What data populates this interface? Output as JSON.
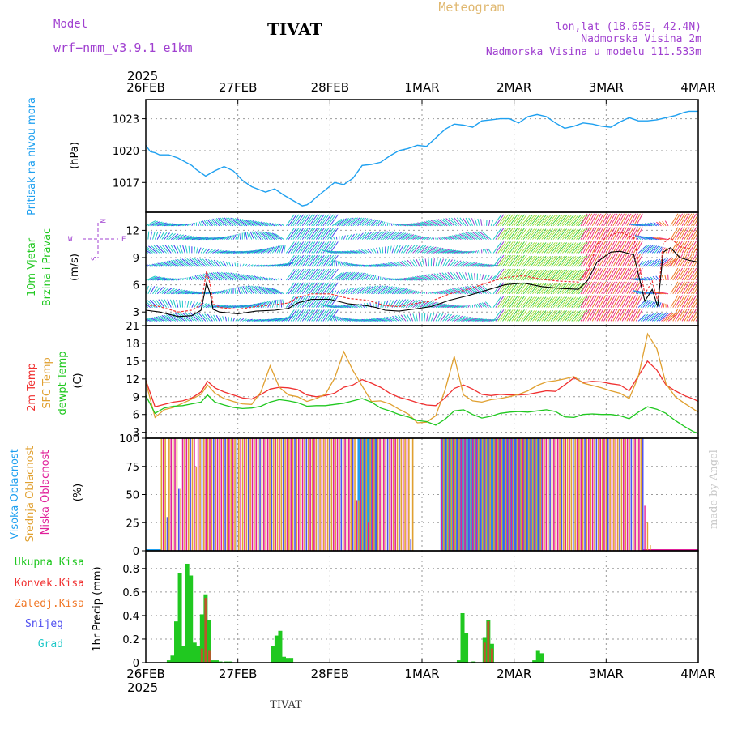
{
  "header": {
    "model_label": "Model",
    "model_name": "wrf−nmm_v3.9.1  e1km",
    "station": "TIVAT",
    "meteogram": "Meteogram",
    "lonlat": "lon,lat (18.65E, 42.4N)",
    "elevation": "Nadmorska Visina 2m",
    "elevation_model": "Nadmorska Visina u modelu 111.533m",
    "footer_station": "TIVAT",
    "credit": "made by Angel",
    "year": "2025"
  },
  "colors": {
    "pressure": "#1ea0f0",
    "temp2m": "#f03030",
    "sfc": "#e0a030",
    "dew": "#20c820",
    "high": "#1ea0f0",
    "mid": "#e0a030",
    "low": "#e0209a",
    "ukupna": "#20c820",
    "konvek": "#f03030",
    "zaledj": "#f07828",
    "snijeg": "#5050f0",
    "grad": "#20c8c8",
    "purple": "#a040d0"
  },
  "time_axis": {
    "labels": [
      "26FEB",
      "27FEB",
      "28FEB",
      "1MAR",
      "2MAR",
      "3MAR",
      "4MAR"
    ]
  },
  "chart_data": [
    {
      "type": "line",
      "panel": "pressure",
      "ylabel": "Pritisak na nivou mora",
      "unit": "(hPa)",
      "yticks": [
        1017,
        1020,
        1023
      ],
      "ylim": [
        1014.2,
        1024.8
      ],
      "xlim_days": [
        0,
        6
      ],
      "x_days": [
        0,
        0.05,
        0.1,
        0.15,
        0.25,
        0.35,
        0.5,
        0.55,
        0.65,
        0.75,
        0.85,
        0.95,
        1.05,
        1.15,
        1.3,
        1.4,
        1.5,
        1.6,
        1.7,
        1.75,
        1.8,
        1.85,
        1.95,
        2.05,
        2.15,
        2.25,
        2.35,
        2.45,
        2.55,
        2.65,
        2.75,
        2.85,
        2.95,
        3.05,
        3.15,
        3.25,
        3.35,
        3.45,
        3.55,
        3.65,
        3.75,
        3.85,
        3.95,
        4.05,
        4.15,
        4.25,
        4.35,
        4.45,
        4.55,
        4.65,
        4.75,
        4.85,
        4.95,
        5.05,
        5.15,
        5.25,
        5.35,
        5.45,
        5.55,
        5.65,
        5.75,
        5.85,
        5.9,
        6.0
      ],
      "series": [
        {
          "name": "Pritisak na nivou mora",
          "values": [
            1020.5,
            1019.9,
            1019.8,
            1019.6,
            1019.6,
            1019.3,
            1018.6,
            1018.2,
            1017.6,
            1018.1,
            1018.5,
            1018.1,
            1017.2,
            1016.6,
            1016.1,
            1016.4,
            1015.8,
            1015.3,
            1014.8,
            1014.9,
            1015.2,
            1015.6,
            1016.3,
            1017,
            1016.8,
            1017.4,
            1018.6,
            1018.7,
            1018.9,
            1019.5,
            1020,
            1020.2,
            1020.5,
            1020.4,
            1021.2,
            1022,
            1022.5,
            1022.4,
            1022.2,
            1022.8,
            1022.9,
            1023,
            1023,
            1022.6,
            1023.2,
            1023.4,
            1023.2,
            1022.6,
            1022.1,
            1022.3,
            1022.6,
            1022.5,
            1022.3,
            1022.2,
            1022.7,
            1023.1,
            1022.8,
            1022.8,
            1022.9,
            1023.1,
            1023.3,
            1023.6,
            1023.7,
            1023.7
          ]
        }
      ]
    },
    {
      "type": "line",
      "panel": "wind",
      "ylabel": "10m Vjetar Brzina i Pravac",
      "unit": "(m/s)",
      "yticks": [
        3,
        6,
        9,
        12
      ],
      "ylim": [
        1.5,
        14
      ],
      "xlim_days": [
        0,
        6
      ],
      "compass": {
        "n": "N",
        "e": "E",
        "w": "W",
        "s": "S"
      },
      "speed_x_days": [
        0,
        0.15,
        0.35,
        0.5,
        0.6,
        0.66,
        0.7,
        0.73,
        0.8,
        1.0,
        1.2,
        1.4,
        1.55,
        1.65,
        1.8,
        2.0,
        2.2,
        2.4,
        2.5,
        2.6,
        2.75,
        2.9,
        3.1,
        3.3,
        3.5,
        3.7,
        3.9,
        4.1,
        4.3,
        4.5,
        4.7,
        4.8,
        4.9,
        5.05,
        5.15,
        5.3,
        5.42,
        5.5,
        5.56,
        5.62,
        5.7,
        5.8,
        5.9,
        6.0
      ],
      "series": [
        {
          "name": "speed",
          "values": [
            3.2,
            3.0,
            2.5,
            2.6,
            3.2,
            6.2,
            5.0,
            3.3,
            3.0,
            2.8,
            3.1,
            3.2,
            3.4,
            4.0,
            4.4,
            4.4,
            3.9,
            3.7,
            3.5,
            3.2,
            3.1,
            3.3,
            3.6,
            4.3,
            4.8,
            5.4,
            6.0,
            6.2,
            5.8,
            5.6,
            5.5,
            6.5,
            8.5,
            9.6,
            9.7,
            9.3,
            4.2,
            5.5,
            3.6,
            9.6,
            10.1,
            9.0,
            8.7,
            8.5
          ]
        },
        {
          "name": "gust",
          "values": [
            3.8,
            3.6,
            3.0,
            3.2,
            3.8,
            7.5,
            6.0,
            3.9,
            3.5,
            3.3,
            3.6,
            3.8,
            4.0,
            4.6,
            5.0,
            5.0,
            4.5,
            4.3,
            4.0,
            3.7,
            3.6,
            3.9,
            4.2,
            5.0,
            5.5,
            6.2,
            6.8,
            7.0,
            6.6,
            6.4,
            6.3,
            7.5,
            10.5,
            11.5,
            11.8,
            11.2,
            5.0,
            6.4,
            4.2,
            10.6,
            11.2,
            10.2,
            10.0,
            9.8
          ]
        }
      ]
    },
    {
      "type": "line",
      "panel": "temperature",
      "ylabel": "2m Temp / SFC Temp / dewpt Temp",
      "unit": "(C)",
      "yticks": [
        3,
        6,
        9,
        12,
        15,
        18,
        21
      ],
      "ylim": [
        2,
        21
      ],
      "xlim_days": [
        0,
        6
      ],
      "x_days": [
        0,
        0.1,
        0.2,
        0.3,
        0.4,
        0.5,
        0.6,
        0.67,
        0.75,
        0.85,
        0.95,
        1.05,
        1.15,
        1.25,
        1.35,
        1.45,
        1.55,
        1.65,
        1.75,
        1.85,
        1.95,
        2.05,
        2.15,
        2.25,
        2.35,
        2.45,
        2.55,
        2.65,
        2.75,
        2.85,
        2.95,
        3.05,
        3.15,
        3.25,
        3.35,
        3.45,
        3.55,
        3.65,
        3.75,
        3.85,
        3.95,
        4.05,
        4.15,
        4.25,
        4.35,
        4.45,
        4.55,
        4.65,
        4.75,
        4.85,
        4.95,
        5.05,
        5.15,
        5.25,
        5.35,
        5.45,
        5.55,
        5.65,
        5.75,
        5.85,
        5.95,
        6.0
      ],
      "series": [
        {
          "name": "2m Temp",
          "values": [
            11.8,
            7.3,
            7.7,
            8.1,
            8.3,
            8.8,
            9.8,
            11.6,
            10.5,
            9.8,
            9.3,
            8.8,
            8.6,
            9.4,
            10.3,
            10.6,
            10.5,
            10.2,
            9.3,
            9.0,
            9.2,
            9.6,
            10.6,
            11.0,
            11.9,
            11.3,
            10.6,
            9.6,
            8.9,
            8.5,
            8.0,
            7.6,
            7.5,
            8.8,
            10.4,
            11.0,
            10.3,
            9.4,
            9.2,
            9.4,
            9.3,
            9.3,
            9.4,
            9.7,
            10.0,
            9.9,
            11.0,
            12.2,
            11.4,
            11.6,
            11.5,
            11.2,
            11.0,
            10.0,
            12.5,
            15.0,
            13.5,
            11.0,
            10.0,
            9.2,
            8.6,
            8.2
          ]
        },
        {
          "name": "SFC Temp",
          "values": [
            11.5,
            5.5,
            6.8,
            7.2,
            7.9,
            8.6,
            9.4,
            11.0,
            9.6,
            8.7,
            8.2,
            7.8,
            7.7,
            9.8,
            14.2,
            10.6,
            9.3,
            9.0,
            8.2,
            8.7,
            9.4,
            12.1,
            16.6,
            13.4,
            10.8,
            8.2,
            8.3,
            7.8,
            6.9,
            6.1,
            4.6,
            4.7,
            5.8,
            10.1,
            15.8,
            9.3,
            8.3,
            8.1,
            8.5,
            8.7,
            9.0,
            9.4,
            10.0,
            10.9,
            11.5,
            11.7,
            12.0,
            12.4,
            11.3,
            10.9,
            10.5,
            10.0,
            9.6,
            8.7,
            12.4,
            19.6,
            17.1,
            11.2,
            9.0,
            7.9,
            6.9,
            6.4
          ]
        },
        {
          "name": "dewpt Temp",
          "values": [
            9.2,
            6.2,
            7.1,
            7.4,
            7.5,
            7.8,
            8.1,
            9.3,
            8.1,
            7.6,
            7.2,
            7.0,
            7.1,
            7.4,
            8.1,
            8.5,
            8.3,
            8.0,
            7.4,
            7.5,
            7.5,
            7.7,
            7.9,
            8.3,
            8.7,
            8.1,
            7.1,
            6.6,
            6.0,
            5.6,
            5.0,
            4.8,
            4.2,
            5.2,
            6.6,
            6.8,
            6.0,
            5.4,
            5.7,
            6.2,
            6.4,
            6.5,
            6.4,
            6.6,
            6.8,
            6.5,
            5.6,
            5.5,
            6.0,
            6.1,
            6.0,
            6.0,
            5.8,
            5.3,
            6.4,
            7.3,
            6.9,
            6.2,
            5.0,
            4.0,
            3.1,
            2.8
          ]
        }
      ]
    },
    {
      "type": "bar",
      "panel": "clouds",
      "ylabel": "Visoka Oblacnost / Srednja Oblacnost / Niska Oblacnost",
      "unit": "(%)",
      "yticks": [
        0,
        25,
        50,
        75,
        100
      ],
      "ylim": [
        0,
        100
      ],
      "xlim_days": [
        0,
        6
      ],
      "segments": [
        {
          "name": "Visoka Oblacnost",
          "from_day": 0.0,
          "to_day": 0.17,
          "value": 0
        },
        {
          "name": "Visoka Oblacnost",
          "from_day": 2.3,
          "to_day": 2.5,
          "value": 100
        },
        {
          "name": "Visoka Oblacnost",
          "from_day": 3.2,
          "to_day": 4.3,
          "value": 100
        },
        {
          "name": "Visoka Oblacnost",
          "from_day": 5.4,
          "to_day": 6.0,
          "value": 0
        }
      ],
      "bar_value": 100,
      "mid_bars_from_day": 0.17,
      "mid_bars_to_day": 5.4,
      "dip_days": [
        0.23,
        0.37,
        0.55,
        2.3,
        2.42,
        2.87,
        3.0,
        5.42,
        5.47
      ],
      "dip_values": [
        30,
        55,
        75,
        45,
        25,
        10,
        12,
        40,
        25
      ]
    },
    {
      "type": "bar",
      "panel": "precip",
      "ylabel": "1hr Precip (mm)",
      "series_names": [
        "Ukupna Kisa",
        "Konvek.Kisa",
        "Zaledj.Kisa",
        "Snijeg",
        "Grad"
      ],
      "yticks": [
        0,
        0.2,
        0.4,
        0.6,
        0.8
      ],
      "ylim": [
        0,
        0.95
      ],
      "xlim_days": [
        0,
        6
      ],
      "x_days": [
        0.25,
        0.29,
        0.33,
        0.37,
        0.41,
        0.45,
        0.49,
        0.53,
        0.57,
        0.61,
        0.65,
        0.69,
        0.73,
        0.77,
        0.81,
        0.87,
        0.92,
        1.38,
        1.42,
        1.46,
        1.5,
        1.54,
        1.58,
        3.4,
        3.44,
        3.48,
        3.52,
        3.56,
        3.6,
        3.64,
        3.68,
        3.72,
        3.76,
        4.22,
        4.26,
        4.3,
        4.34,
        4.38,
        4.42,
        4.47,
        4.52,
        4.56
      ],
      "series": [
        {
          "name": "Ukupna Kisa",
          "values": [
            0.02,
            0.06,
            0.35,
            0.76,
            0.14,
            0.84,
            0.74,
            0.17,
            0.14,
            0.41,
            0.58,
            0.36,
            0.02,
            0.02,
            0.01,
            0.01,
            0.01,
            0.14,
            0.23,
            0.27,
            0.05,
            0.04,
            0.04,
            0.02,
            0.42,
            0.25,
            0.0,
            0.01,
            0.0,
            0.0,
            0.21,
            0.36,
            0.16,
            0.02,
            0.1,
            0.08,
            0.0,
            0.0,
            0.0,
            0.0,
            0.0,
            0.0
          ]
        },
        {
          "name": "Konvek.Kisa",
          "values": [
            0.0,
            0.0,
            0.0,
            0.0,
            0.0,
            0.0,
            0.0,
            0.0,
            0.0,
            0.12,
            0.55,
            0.1,
            0.0,
            0.0,
            0.0,
            0.0,
            0.0,
            0.0,
            0.0,
            0.0,
            0.0,
            0.0,
            0.0,
            0.0,
            0.0,
            0.0,
            0.0,
            0.0,
            0.0,
            0.0,
            0.17,
            0.35,
            0.12,
            0.0,
            0.0,
            0.0,
            0.0,
            0.0,
            0.0,
            0.0,
            0.0,
            0.0
          ]
        }
      ]
    }
  ]
}
